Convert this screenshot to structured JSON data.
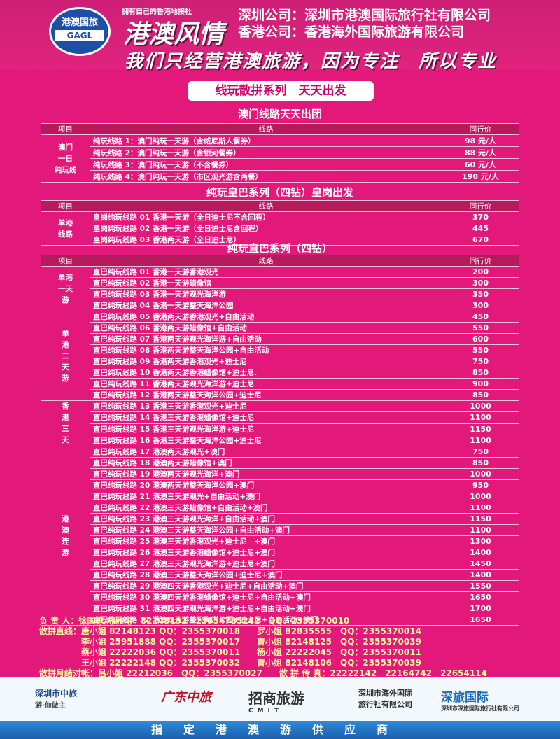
{
  "header": {
    "logo_top": "港澳国旅",
    "logo_band": "GAGL",
    "tagline": "拥有自己的香港地接社",
    "brand": "港澳风情",
    "companies": [
      {
        "label": "深圳公司：",
        "name": "深圳市港澳国际旅行社有限公司"
      },
      {
        "label": "香港公司：",
        "name": "香港海外国际旅游有限公司"
      }
    ],
    "slogan": "我们只经营港澳旅游，因为专注　所以专业"
  },
  "series_banner": "线玩散拼系列　天天出发",
  "sections": [
    {
      "title": "澳门线路天天出团",
      "columns": [
        "项目",
        "线路",
        "同行价"
      ],
      "groups": [
        {
          "category": "澳门\n一日\n纯玩线",
          "rows": [
            {
              "route": "纯玩线路 1：澳门纯玩一天游（含威尼斯人餐券）",
              "price": "98 元/人"
            },
            {
              "route": "纯玩线路 2：澳门纯玩一天游（含银河餐券）",
              "price": "88 元/人"
            },
            {
              "route": "纯玩线路 3：澳门纯玩一天游（不含餐券）",
              "price": "60 元/人"
            },
            {
              "route": "纯玩线路 4：澳门纯玩一天游（市区观光游含两餐）",
              "price": "190 元/人"
            }
          ]
        }
      ]
    },
    {
      "title": "纯玩皇巴系列（四钻）皇岗出发",
      "columns": [
        "项目",
        "线路",
        "同行价"
      ],
      "groups": [
        {
          "category": "单港\n线路",
          "rows": [
            {
              "route": "皇岗纯玩线路 01 香港一天游（全日迪士尼不含回程）",
              "price": "370"
            },
            {
              "route": "皇岗纯玩线路 02 香港一天游（全日迪士尼含回程）",
              "price": "445"
            },
            {
              "route": "皇岗纯玩线路 03 香港两天游（全日迪士尼）",
              "price": "670"
            }
          ]
        }
      ]
    },
    {
      "title": "纯玩直巴系列（四钻）",
      "columns": [
        "项目",
        "线路",
        "同行价"
      ],
      "groups": [
        {
          "category": "单港\n一天\n游",
          "rows": [
            {
              "route": "直巴纯玩线路 01 香港一天游香港观光",
              "price": "200"
            },
            {
              "route": "直巴纯玩线路 02 香港一天游蜡像馆",
              "price": "300"
            },
            {
              "route": "直巴纯玩线路 03 香港一天游观光海洋游",
              "price": "350"
            },
            {
              "route": "直巴纯玩线路 04 香港一天游整天海洋公园",
              "price": "300"
            }
          ]
        },
        {
          "category": "单\n港\n二\n天\n游",
          "rows": [
            {
              "route": "直巴纯玩线路 05 香港两天游香港观光+自由活动",
              "price": "450"
            },
            {
              "route": "直巴纯玩线路 06 香港两天游蜡像馆+自由活动",
              "price": "550"
            },
            {
              "route": "直巴纯玩线路 07 香港两天游观光海洋游+自由活动",
              "price": "600"
            },
            {
              "route": "直巴纯玩线路 08 香港两天游整天海洋公园+自由活动",
              "price": "550"
            },
            {
              "route": "直巴纯玩线路 09 香港两天游香港观光+迪士尼",
              "price": "750"
            },
            {
              "route": "直巴纯玩线路 10 香港两天游香港蜡像馆+迪士尼.",
              "price": "850"
            },
            {
              "route": "直巴纯玩线路 11 香港两天游观光海洋游+迪士尼",
              "price": "900"
            },
            {
              "route": "直巴纯玩线路 12 香港两天游整天海洋公园+迪士尼",
              "price": "850"
            }
          ]
        },
        {
          "category": "香\n港\n三\n天",
          "rows": [
            {
              "route": "直巴纯玩线路 13 香港三天游香港观光+迪士尼",
              "price": "1000"
            },
            {
              "route": "直巴纯玩线路 14 香港三天游香港蜡像馆+迪士尼",
              "price": "1100"
            },
            {
              "route": "直巴纯玩线路 15 香港三天游观光海洋游+迪士尼",
              "price": "1150"
            },
            {
              "route": "直巴纯玩线路 16 香港三天游整天海洋公园+迪士尼",
              "price": "1100"
            }
          ]
        },
        {
          "category": "港\n澳\n连\n游",
          "rows": [
            {
              "route": "直巴纯玩线路 17 港澳两天游观光+澳门",
              "price": "750"
            },
            {
              "route": "直巴纯玩线路 18 港澳两天游蜡像馆+澳门",
              "price": "850"
            },
            {
              "route": "直巴纯玩线路 19 港澳两天游观光海洋+澳门",
              "price": "1000"
            },
            {
              "route": "直巴纯玩线路 20 港澳两天游整天海洋公园+澳门",
              "price": "950"
            },
            {
              "route": "直巴纯玩线路 21 港澳三天游观光+自由活动+澳门",
              "price": "1000"
            },
            {
              "route": "直巴纯玩线路 22 港澳三天游蜡像馆+自由活动+澳门",
              "price": "1100"
            },
            {
              "route": "直巴纯玩线路 23 港澳三天游观光海洋+自由活动+澳门",
              "price": "1150"
            },
            {
              "route": "直巴纯玩线路 24 港澳三天游整天海洋公园+自由活动+澳门",
              "price": "1100"
            },
            {
              "route": "直巴纯玩线路 25 港澳三天游香港观光+迪士尼　+澳门",
              "price": "1300"
            },
            {
              "route": "直巴纯玩线路 26 港澳三天游香港蜡像馆+迪士尼+澳门",
              "price": "1400"
            },
            {
              "route": "直巴纯玩线路 27 港澳三天游观光海洋游+迪士尼+澳门",
              "price": "1450"
            },
            {
              "route": "直巴纯玩线路 28 港澳三天游整天海洋公园+迪士尼+澳门",
              "price": "1400"
            },
            {
              "route": "直巴纯玩线路 29 港澳四天游香港观光+迪士尼+自由活动+澳门",
              "price": "1550"
            },
            {
              "route": "直巴纯玩线路 30 港澳四天游香港蜡像馆+迪士尼+自由活动+澳门",
              "price": "1650"
            },
            {
              "route": "直巴纯玩线路 31 港澳四天游观光海洋游+迪士尼+自由活动+澳门",
              "price": "1700"
            },
            {
              "route": "直巴纯玩线路 32 港澳四天游整天海洋公园+迪士尼+自由活动+澳门",
              "price": "1650"
            }
          ]
        }
      ]
    }
  ],
  "contacts": [
    "负 责 人：徐国栋/陈雅丽　82148192　13554785242　QQ：2355370010",
    "散拼直线：唐小姐 82148123 QQ：2355370018　　罗小姐 82835555　QQ：2355370014",
    "　　　　　李小姐 25951888 QQ：2355370017　　曹小姐 82148125　QQ：2355370039",
    "　　　　　蔡小姐 22222036 QQ：2355370011　　杨小姐 22222045　QQ：2355370011",
    "　　　　　王小姐 22222148 QQ：2355370032　　曹小姐 82148106　QQ：2355370039",
    "散拼月结对帐：吕小姐 22212036　QQ：2355370027　　散 拼 传 真：22222142　22164742　22654114"
  ],
  "footer_logos": [
    {
      "text": "深圳市中旅",
      "sub": "游·你做主"
    },
    {
      "text": "广东中旅",
      "sub": ""
    },
    {
      "text": "招商旅游",
      "sub": "CMIT"
    },
    {
      "text": "深圳市海外国际",
      "sub": "旅行社有限公司"
    },
    {
      "text": "深旅国际",
      "sub": "深圳市深旅国际旅行社有限公司"
    }
  ],
  "footer_bar": "指定港澳游供应商",
  "colors": {
    "background": "#e2197a",
    "header_row": "#b51a5c",
    "banner_text": "#d0006a",
    "footer_bar": "#1b5fae"
  }
}
